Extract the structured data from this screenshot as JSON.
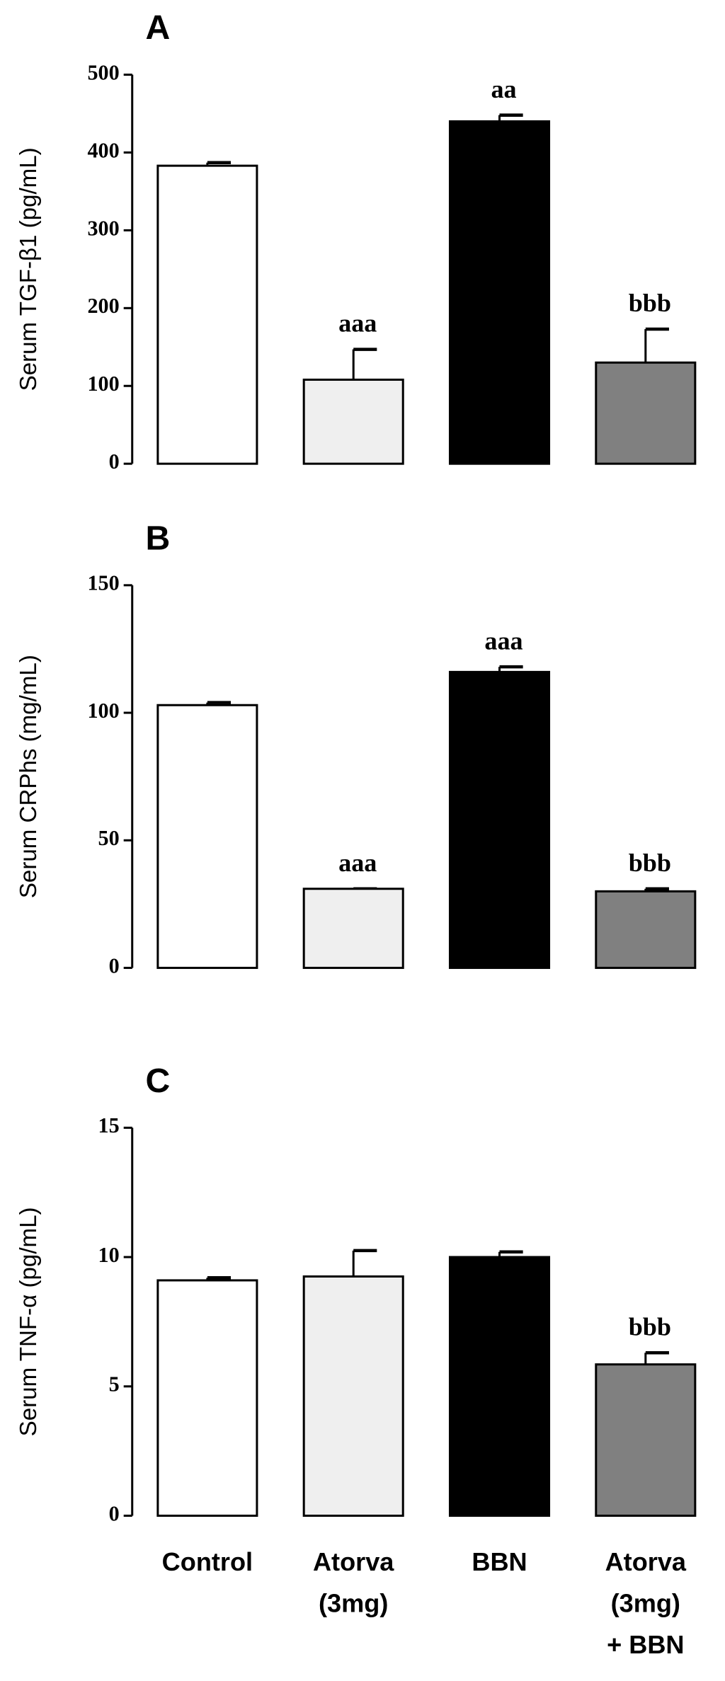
{
  "chart_data": [
    {
      "type": "bar",
      "label": "A",
      "y_label": "Serum TGF-β1 (pg/mL)",
      "colors": [
        "#ffffff",
        "#efefef",
        "#000000",
        "#808080"
      ],
      "values": [
        383,
        108,
        440,
        130
      ],
      "errors": [
        4,
        39,
        8,
        43
      ],
      "annotations": [
        null,
        "aaa",
        "aa",
        "bbb"
      ],
      "ylim": [
        0,
        500
      ],
      "yticks": [
        0,
        100,
        200,
        300,
        400,
        500
      ]
    },
    {
      "type": "bar",
      "label": "B",
      "y_label": "Serum CRPhs (mg/mL)",
      "colors": [
        "#ffffff",
        "#efefef",
        "#000000",
        "#808080"
      ],
      "values": [
        103,
        31,
        116,
        30
      ],
      "errors": [
        1,
        0,
        2,
        1
      ],
      "annotations": [
        null,
        "aaa",
        "aaa",
        "bbb"
      ],
      "ylim": [
        0,
        150
      ],
      "yticks": [
        0,
        50,
        100,
        150
      ]
    },
    {
      "type": "bar",
      "label": "C",
      "y_label": "Serum TNF-α (pg/mL)",
      "colors": [
        "#ffffff",
        "#efefef",
        "#000000",
        "#808080"
      ],
      "categories": [
        [
          "Control"
        ],
        [
          "Atorva",
          "(3mg)"
        ],
        [
          "BBN"
        ],
        [
          "Atorva",
          "(3mg)",
          "+ BBN"
        ]
      ],
      "values": [
        9.1,
        9.25,
        10.0,
        5.85
      ],
      "errors": [
        0.1,
        1.0,
        0.2,
        0.45
      ],
      "annotations": [
        null,
        null,
        null,
        "bbb"
      ],
      "ylim": [
        0,
        15
      ],
      "yticks": [
        0,
        5,
        10,
        15
      ]
    }
  ]
}
